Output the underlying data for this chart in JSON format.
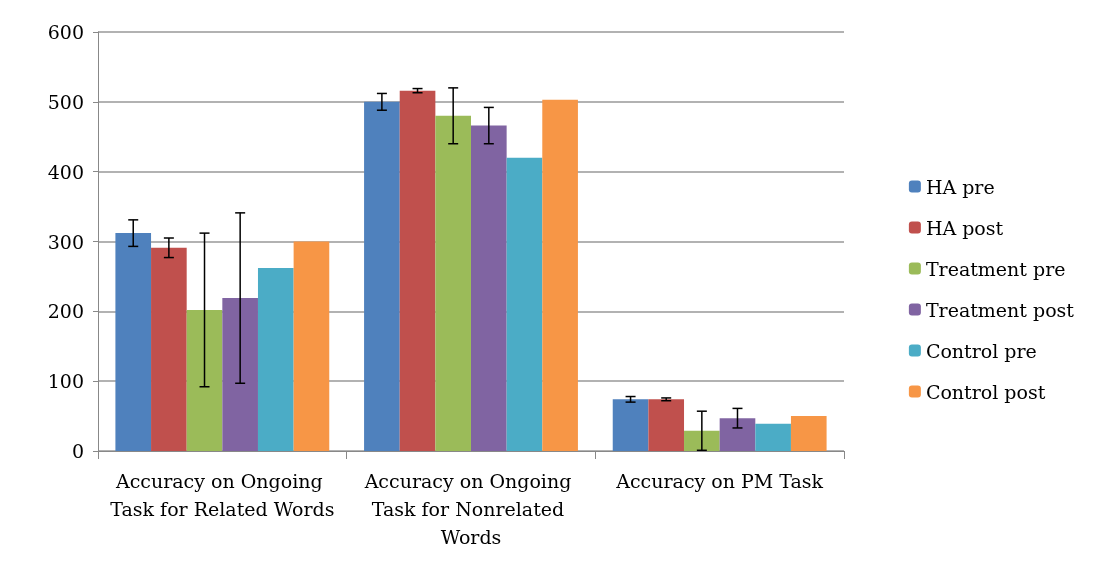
{
  "chart_data": {
    "type": "bar",
    "categories": [
      "Accuracy on Ongoing Task for Related Words",
      "Accuracy on Ongoing Task for Nonrelated Words",
      "Accuracy on PM Task"
    ],
    "series": [
      {
        "name": "HA pre",
        "color": "#4f81bd",
        "values": [
          312,
          500,
          74
        ],
        "errors": [
          19,
          12,
          4
        ]
      },
      {
        "name": "HA post",
        "color": "#c0504d",
        "values": [
          291,
          516,
          74
        ],
        "errors": [
          14,
          3,
          2
        ]
      },
      {
        "name": "Treatment pre",
        "color": "#9bbb59",
        "values": [
          202,
          480,
          29
        ],
        "errors": [
          110,
          40,
          28
        ]
      },
      {
        "name": "Treatment post",
        "color": "#8064a2",
        "values": [
          219,
          466,
          47
        ],
        "errors": [
          122,
          26,
          14
        ]
      },
      {
        "name": "Control pre",
        "color": "#4bacc6",
        "values": [
          262,
          420,
          39
        ]
      },
      {
        "name": "Control post",
        "color": "#f79646",
        "values": [
          300,
          503,
          50
        ]
      }
    ],
    "ylim": [
      0,
      600
    ],
    "yticks": [
      0,
      100,
      200,
      300,
      400,
      500,
      600
    ],
    "grid": "y",
    "legend": "right"
  }
}
